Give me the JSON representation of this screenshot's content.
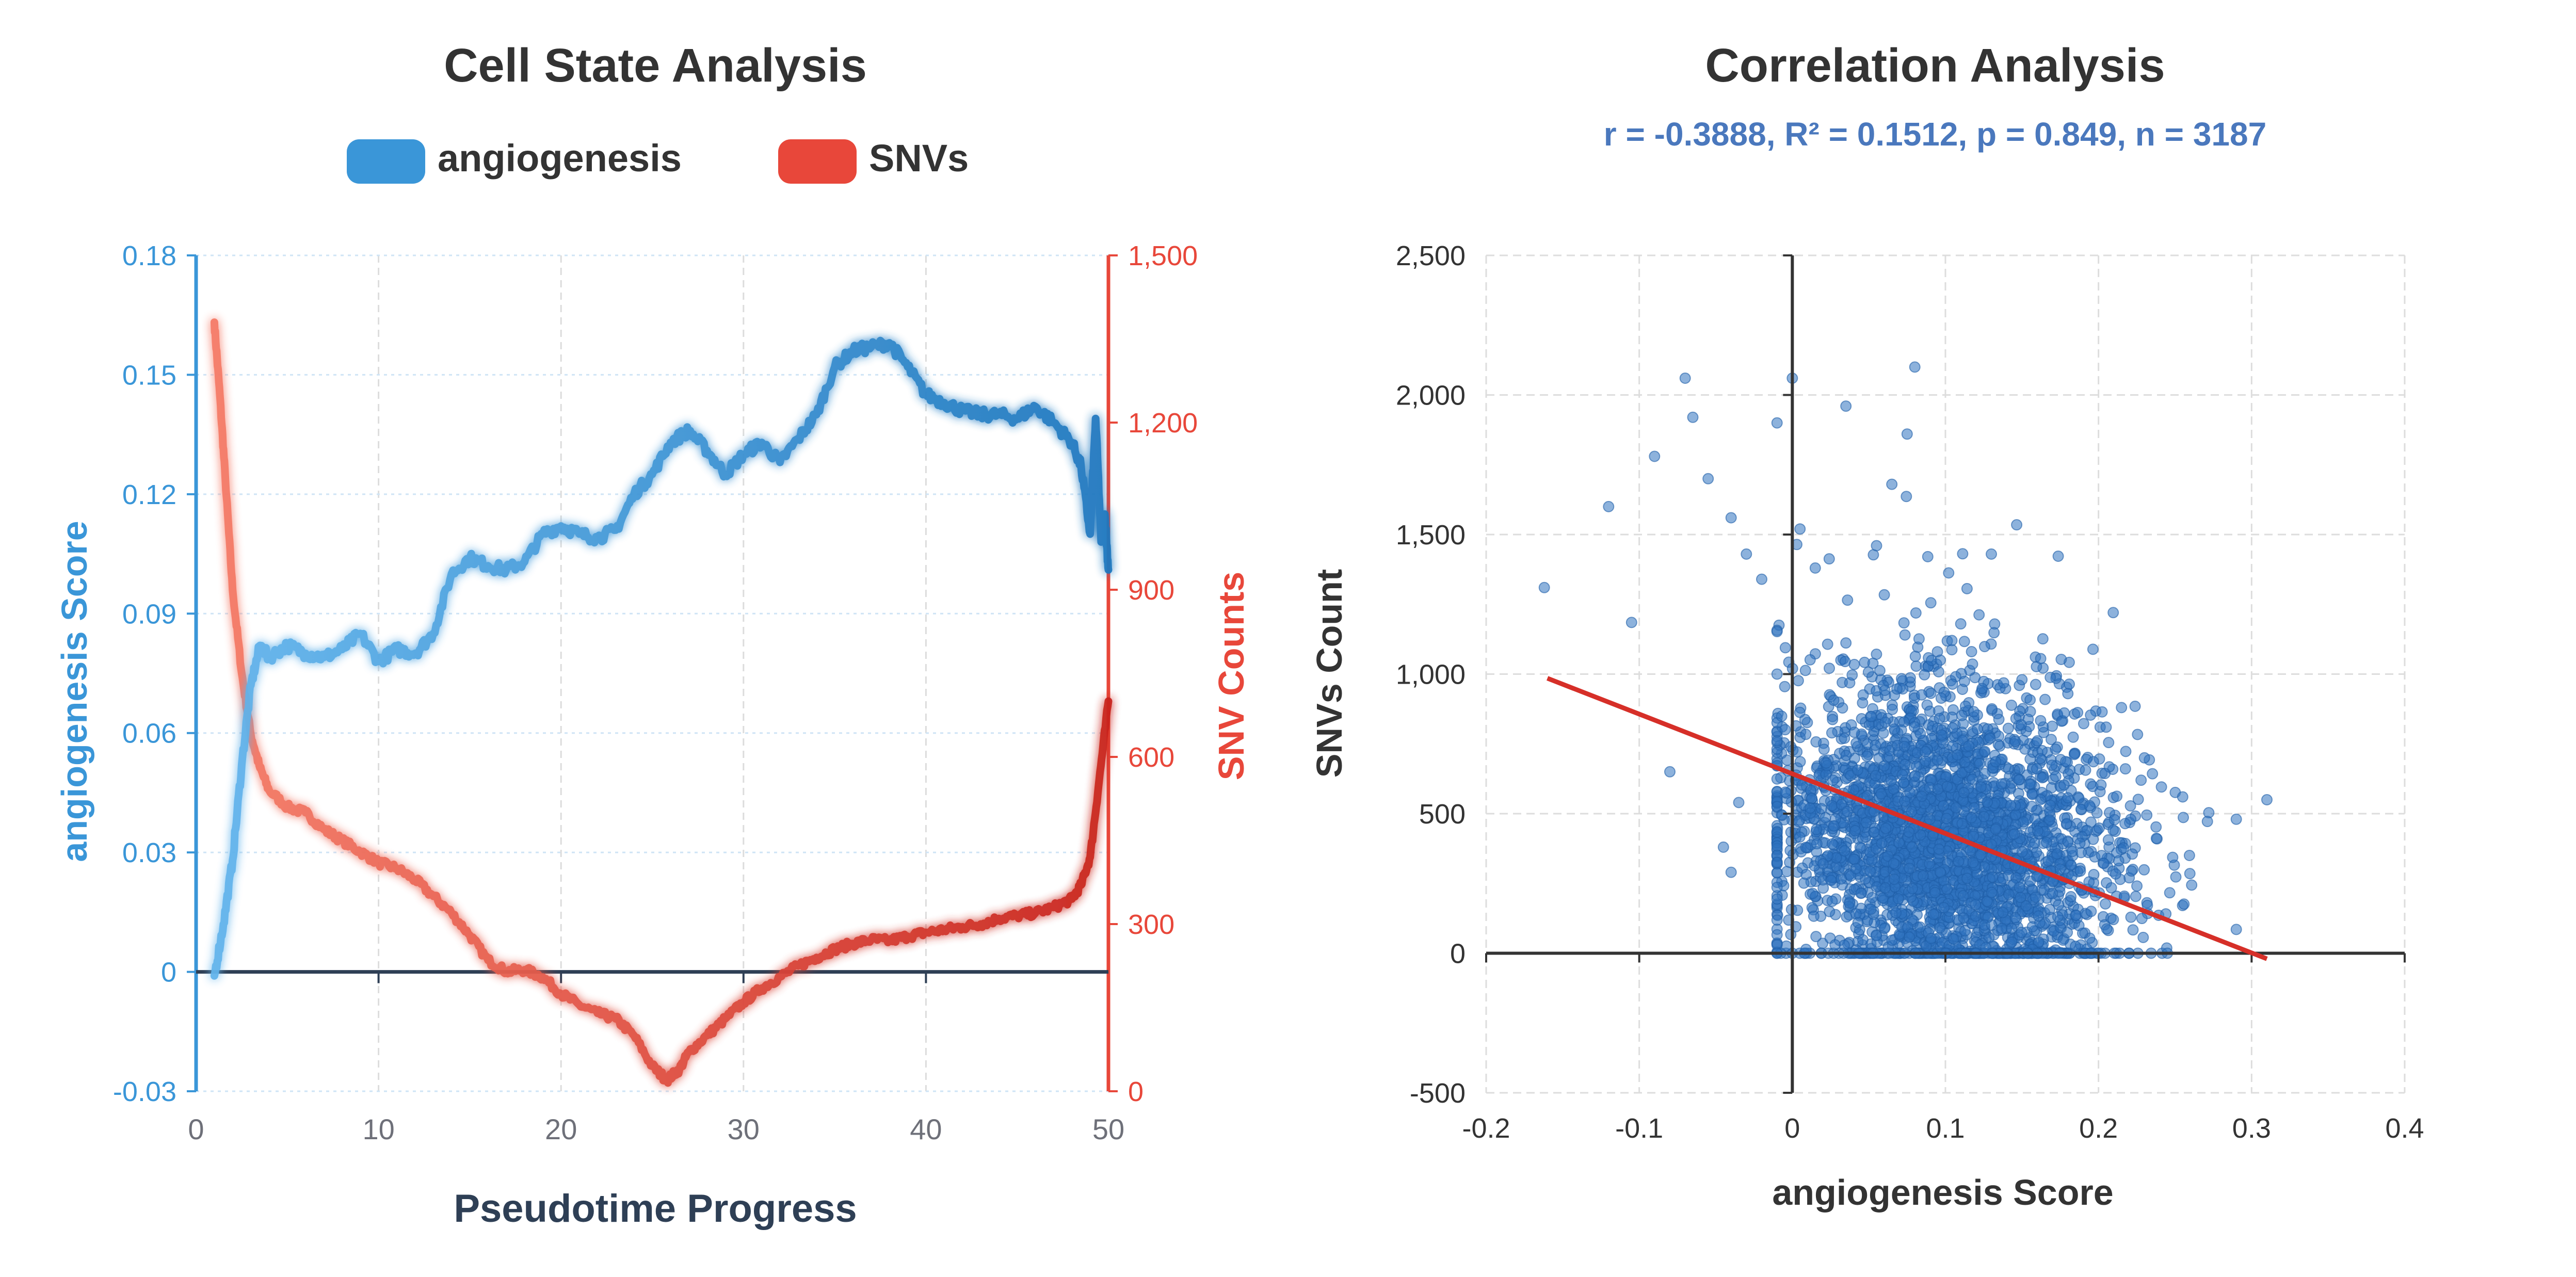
{
  "chart_data": [
    {
      "type": "line",
      "title": "Cell State Analysis",
      "xlabel": "Pseudotime Progress",
      "ylabel_left": "angiogenesis Score",
      "ylabel_right": "SNV Counts",
      "xlim": [
        0,
        50
      ],
      "ylim_left": [
        -0.03,
        0.18
      ],
      "ylim_right": [
        0,
        1500
      ],
      "x_ticks": [
        "0",
        "10",
        "20",
        "30",
        "40",
        "50"
      ],
      "y_left_ticks": [
        "-0.03",
        "0",
        "0.03",
        "0.06",
        "0.09",
        "0.12",
        "0.15",
        "0.18"
      ],
      "y_right_ticks": [
        "0",
        "300",
        "600",
        "900",
        "1,200",
        "1,500"
      ],
      "legend": [
        {
          "name": "angiogenesis",
          "color": "#3a96d8"
        },
        {
          "name": "SNVs",
          "color": "#e8473a"
        }
      ],
      "series": [
        {
          "name": "angiogenesis",
          "axis": "left",
          "x": [
            1.0,
            1.5,
            2.0,
            2.5,
            3.0,
            3.5,
            4.0,
            5.0,
            6.0,
            7.0,
            8.0,
            9.0,
            10.0,
            11.0,
            12.0,
            13.0,
            14.0,
            15.0,
            16.0,
            17.0,
            18.0,
            19.0,
            20.0,
            21.0,
            22.0,
            23.0,
            24.0,
            25.0,
            26.0,
            27.0,
            28.0,
            29.0,
            30.0,
            31.0,
            32.0,
            33.0,
            34.0,
            35.0,
            36.0,
            37.0,
            38.0,
            39.0,
            40.0,
            41.0,
            42.0,
            43.0,
            44.0,
            45.0,
            46.0,
            47.0,
            48.0,
            48.5,
            49.0,
            49.3,
            49.6,
            49.8,
            50.0
          ],
          "values": [
            -0.001,
            0.012,
            0.028,
            0.052,
            0.072,
            0.082,
            0.079,
            0.082,
            0.08,
            0.079,
            0.081,
            0.085,
            0.078,
            0.081,
            0.08,
            0.085,
            0.1,
            0.104,
            0.102,
            0.101,
            0.103,
            0.11,
            0.112,
            0.11,
            0.109,
            0.111,
            0.12,
            0.125,
            0.133,
            0.136,
            0.131,
            0.125,
            0.13,
            0.133,
            0.128,
            0.134,
            0.14,
            0.152,
            0.156,
            0.157,
            0.158,
            0.152,
            0.145,
            0.143,
            0.141,
            0.14,
            0.14,
            0.139,
            0.142,
            0.138,
            0.133,
            0.127,
            0.11,
            0.139,
            0.108,
            0.115,
            0.101
          ]
        },
        {
          "name": "SNVs",
          "axis": "right",
          "x": [
            1.0,
            1.3,
            1.6,
            2.0,
            2.5,
            3.0,
            3.5,
            4.0,
            5.0,
            6.0,
            7.0,
            8.0,
            9.0,
            10.0,
            11.0,
            12.0,
            13.0,
            14.0,
            15.0,
            16.0,
            17.0,
            18.0,
            19.0,
            20.0,
            21.0,
            22.0,
            23.0,
            24.0,
            25.0,
            25.8,
            26.5,
            27.0,
            28.0,
            29.0,
            30.0,
            31.0,
            32.0,
            33.0,
            34.0,
            35.0,
            36.0,
            37.0,
            38.0,
            39.0,
            40.0,
            41.0,
            42.0,
            43.0,
            44.0,
            45.0,
            46.0,
            47.0,
            48.0,
            48.5,
            49.0,
            49.5,
            50.0
          ],
          "values": [
            1380,
            1250,
            1100,
            900,
            750,
            640,
            580,
            540,
            510,
            500,
            470,
            450,
            430,
            410,
            400,
            380,
            350,
            320,
            280,
            235,
            215,
            218,
            205,
            175,
            155,
            140,
            130,
            100,
            45,
            20,
            40,
            70,
            100,
            130,
            160,
            185,
            205,
            225,
            240,
            255,
            265,
            272,
            270,
            278,
            285,
            290,
            295,
            300,
            310,
            315,
            320,
            330,
            345,
            370,
            420,
            560,
            700
          ]
        }
      ]
    },
    {
      "type": "scatter",
      "title": "Correlation Analysis",
      "subtitle": "r = -0.3888, R² = 0.1512, p = 0.849, n = 3187",
      "xlabel": "angiogenesis Score",
      "ylabel": "SNVs Count",
      "xlim": [
        -0.2,
        0.4
      ],
      "ylim": [
        -500,
        2500
      ],
      "x_ticks": [
        "-0.2",
        "-0.1",
        "0",
        "0.1",
        "0.2",
        "0.3",
        "0.4"
      ],
      "y_ticks": [
        "-500",
        "0",
        "500",
        "1,000",
        "1,500",
        "2,000",
        "2,500"
      ],
      "n": 3187,
      "point_color": "#2f72c0",
      "regression": {
        "x": [
          -0.16,
          0.31
        ],
        "y": [
          985,
          -20
        ],
        "color": "#d62f28"
      },
      "cloud": {
        "x_mean": 0.1,
        "x_sd": 0.055,
        "y_mean": 380,
        "y_sd": 260,
        "slope": -2120
      },
      "points": [
        [
          -0.162,
          1310
        ],
        [
          -0.12,
          1600
        ],
        [
          -0.105,
          1185
        ],
        [
          -0.09,
          1780
        ],
        [
          -0.07,
          2060
        ],
        [
          -0.065,
          1920
        ],
        [
          -0.055,
          1700
        ],
        [
          -0.04,
          1560
        ],
        [
          -0.03,
          1430
        ],
        [
          -0.02,
          1340
        ],
        [
          -0.01,
          1900
        ],
        [
          0.0,
          2060
        ],
        [
          0.005,
          1520
        ],
        [
          0.015,
          1380
        ],
        [
          0.035,
          1960
        ],
        [
          0.055,
          1460
        ],
        [
          0.075,
          1860
        ],
        [
          0.08,
          2100
        ],
        [
          0.065,
          1680
        ],
        [
          0.11,
          1180
        ],
        [
          0.13,
          1430
        ],
        [
          0.15,
          980
        ],
        [
          0.18,
          930
        ],
        [
          0.205,
          810
        ],
        [
          0.215,
          880
        ],
        [
          0.23,
          700
        ],
        [
          0.255,
          560
        ],
        [
          0.29,
          480
        ],
        [
          0.31,
          550
        ],
        [
          -0.08,
          650
        ],
        [
          -0.045,
          380
        ],
        [
          -0.04,
          290
        ],
        [
          -0.035,
          540
        ],
        [
          0.1,
          0
        ],
        [
          0.12,
          0
        ],
        [
          0.14,
          0
        ],
        [
          0.16,
          0
        ],
        [
          0.2,
          0
        ],
        [
          0.22,
          0
        ],
        [
          0.245,
          0
        ]
      ]
    }
  ]
}
